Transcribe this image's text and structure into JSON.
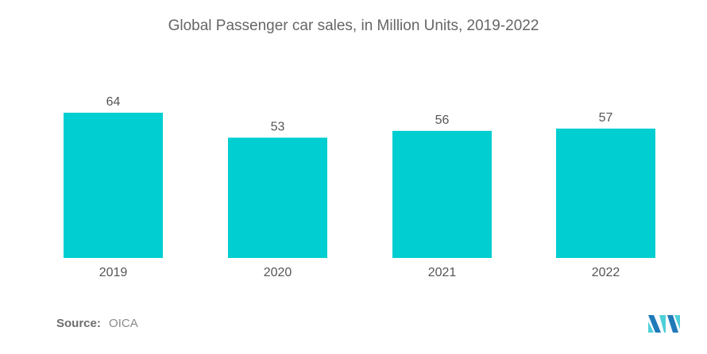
{
  "chart_data": {
    "type": "bar",
    "title": "Global Passenger car sales, in Million Units, 2019-2022",
    "xlabel": "",
    "ylabel": "",
    "categories": [
      "2019",
      "2020",
      "2021",
      "2022"
    ],
    "values": [
      64,
      53,
      56,
      57
    ],
    "data_labels": [
      "64",
      "53",
      "56",
      "57"
    ],
    "ylim": [
      0,
      64
    ],
    "grid": false,
    "legend": "none",
    "bar_color": "#00ced1"
  },
  "source": {
    "label": "Source:",
    "value": "OICA"
  },
  "logo": {
    "icon": "mordor-intelligence-logo-icon",
    "colors": [
      "#1f7ab8",
      "#4fd0d8"
    ]
  }
}
